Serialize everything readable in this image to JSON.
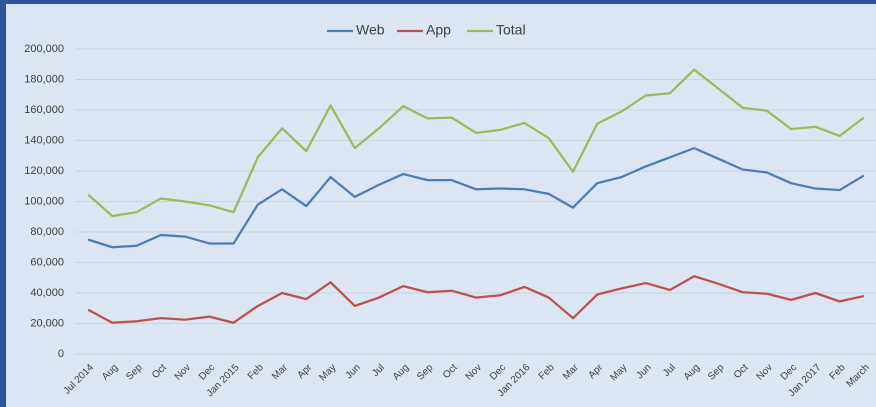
{
  "chart_data": {
    "type": "line",
    "categories": [
      "Jul 2014",
      "Aug",
      "Sep",
      "Oct",
      "Nov",
      "Dec",
      "Jan 2015",
      "Feb",
      "Mar",
      "Apr",
      "May",
      "Jun",
      "Jul",
      "Aug",
      "Sep",
      "Oct",
      "Nov",
      "Dec",
      "Jan 2016",
      "Feb",
      "Mar",
      "Apr",
      "May",
      "Jun",
      "Jul",
      "Aug",
      "Sep",
      "Oct",
      "Nov",
      "Dec",
      "Jan 2017",
      "Feb",
      "March"
    ],
    "series": [
      {
        "name": "Web",
        "color": "#4a7ebb",
        "values": [
          75000,
          70000,
          71000,
          78000,
          77000,
          72500,
          72500,
          98000,
          108000,
          97000,
          116000,
          103000,
          111000,
          118000,
          114000,
          114000,
          108000,
          108500,
          108000,
          105000,
          96000,
          112000,
          116000,
          123000,
          129000,
          135000,
          128000,
          121000,
          119000,
          112000,
          108500,
          107500,
          117000
        ]
      },
      {
        "name": "App",
        "color": "#c0504d",
        "values": [
          29000,
          20500,
          21500,
          23500,
          22500,
          24500,
          20500,
          31500,
          40000,
          36000,
          47000,
          31500,
          37000,
          44500,
          40500,
          41500,
          37000,
          38500,
          44000,
          37000,
          23500,
          39000,
          43000,
          46500,
          42000,
          51000,
          46000,
          40500,
          39500,
          35500,
          40000,
          34500,
          38000
        ]
      },
      {
        "name": "Total",
        "color": "#9bbb59",
        "values": [
          104500,
          90500,
          93000,
          102000,
          100000,
          97500,
          93000,
          129000,
          148000,
          133000,
          163000,
          135000,
          148000,
          162500,
          154500,
          155000,
          145000,
          147000,
          151500,
          141500,
          119500,
          151000,
          159000,
          169500,
          171000,
          186500,
          174000,
          161500,
          159500,
          147500,
          149000,
          143000,
          155000
        ]
      }
    ],
    "ylim": [
      0,
      200000
    ],
    "yticks": [
      0,
      {
        "value": 20000,
        "label": "20,000"
      },
      {
        "value": 40000,
        "label": "40,000"
      },
      {
        "value": 60000,
        "label": "60,000"
      },
      {
        "value": 80000,
        "label": "80,000"
      },
      {
        "value": 100000,
        "label": "100,000"
      },
      {
        "value": 120000,
        "label": "120,000"
      },
      {
        "value": 140000,
        "label": "140,000"
      },
      {
        "value": 160000,
        "label": "160,000"
      },
      {
        "value": 180000,
        "label": "180,000"
      },
      {
        "value": 200000,
        "label": "200,000"
      }
    ],
    "grid": true,
    "legend": "top"
  }
}
